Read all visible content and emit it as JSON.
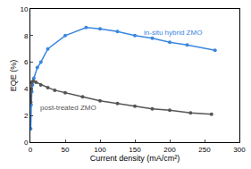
{
  "chart_data": {
    "type": "line",
    "x_label": "Current density (mA/cm²)",
    "y_label": "EQE (%)",
    "xlim": [
      0,
      300
    ],
    "xticks": [
      0,
      50,
      100,
      150,
      200,
      250,
      300
    ],
    "ylim": [
      0,
      10
    ],
    "yticks": [
      0,
      2,
      4,
      6,
      8,
      10
    ],
    "grid": false,
    "series": [
      {
        "name": "in-situ hybrid ZMO",
        "color": "#3a86e0",
        "marker": "circle",
        "x": [
          0.5,
          1,
          2,
          3,
          5,
          10,
          15,
          25,
          50,
          80,
          100,
          125,
          150,
          175,
          200,
          225,
          265
        ],
        "values": [
          1.0,
          2.8,
          3.8,
          4.3,
          4.8,
          5.6,
          6.0,
          7.0,
          8.0,
          8.6,
          8.5,
          8.3,
          8.0,
          7.8,
          7.5,
          7.3,
          6.9
        ]
      },
      {
        "name": "post-treated ZMO",
        "color": "#555555",
        "marker": "circle",
        "x": [
          0.5,
          1,
          2,
          4,
          8,
          15,
          25,
          35,
          50,
          75,
          100,
          125,
          150,
          175,
          200,
          230,
          260
        ],
        "values": [
          3.0,
          4.0,
          4.5,
          4.6,
          4.5,
          4.3,
          4.1,
          3.9,
          3.7,
          3.4,
          3.1,
          2.9,
          2.7,
          2.5,
          2.4,
          2.2,
          2.1
        ]
      }
    ],
    "annotations": [
      {
        "text": "in-situ hybrid ZMO",
        "x": 205,
        "y": 8.2,
        "color": "#3a86e0"
      },
      {
        "text": "post-treated ZMO",
        "x": 55,
        "y": 2.6,
        "color": "#555555"
      }
    ]
  }
}
